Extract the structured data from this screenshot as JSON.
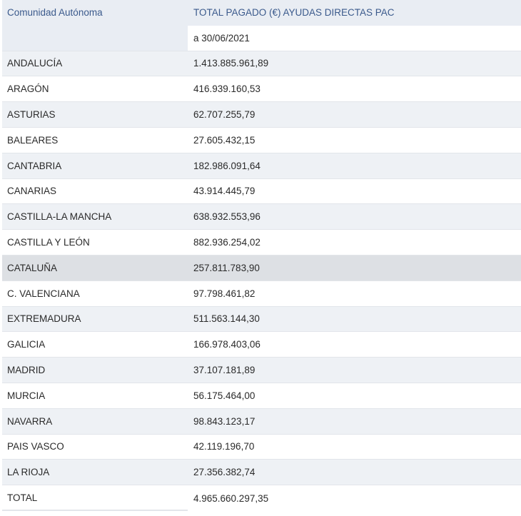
{
  "header": {
    "col1": "Comunidad Autónoma",
    "col2": "TOTAL PAGADO (€) AYUDAS DIRECTAS PAC",
    "date": "a 30/06/2021"
  },
  "rows": [
    {
      "region": "ANDALUCÍA",
      "amount": "1.413.885.961,89"
    },
    {
      "region": "ARAGÓN",
      "amount": "416.939.160,53"
    },
    {
      "region": "ASTURIAS",
      "amount": "62.707.255,79"
    },
    {
      "region": "BALEARES",
      "amount": "27.605.432,15"
    },
    {
      "region": "CANTABRIA",
      "amount": "182.986.091,64"
    },
    {
      "region": "CANARIAS",
      "amount": "43.914.445,79"
    },
    {
      "region": "CASTILLA-LA MANCHA",
      "amount": "638.932.553,96"
    },
    {
      "region": "CASTILLA Y LEÓN",
      "amount": "882.936.254,02"
    },
    {
      "region": "CATALUÑA",
      "amount": "257.811.783,90"
    },
    {
      "region": "C. VALENCIANA",
      "amount": "97.798.461,82"
    },
    {
      "region": "EXTREMADURA",
      "amount": "511.563.144,30"
    },
    {
      "region": "GALICIA",
      "amount": "166.978.403,06"
    },
    {
      "region": "MADRID",
      "amount": "37.107.181,89"
    },
    {
      "region": "MURCIA",
      "amount": "56.175.464,00"
    },
    {
      "region": "NAVARRA",
      "amount": "98.843.123,17"
    },
    {
      "region": "PAIS VASCO",
      "amount": "42.119.196,70"
    },
    {
      "region": "LA RIOJA",
      "amount": "27.356.382,74"
    },
    {
      "region": "TOTAL",
      "amount": "4.965.660.297,35"
    }
  ]
}
